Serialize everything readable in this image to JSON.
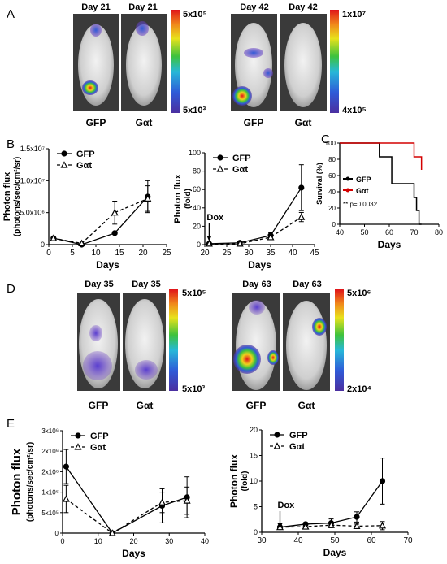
{
  "panels": {
    "A": {
      "letter": "A",
      "image_groups": [
        {
          "day_labels": [
            "Day 21",
            "Day 21"
          ],
          "mouse_labels": [
            "GFP",
            "Gαt"
          ],
          "scale_top": "5x10⁵",
          "scale_bottom": "5x10³"
        },
        {
          "day_labels": [
            "Day 42",
            "Day 42"
          ],
          "mouse_labels": [
            "GFP",
            "Gαt"
          ],
          "scale_top": "1x10⁷",
          "scale_bottom": "4x10⁵"
        }
      ]
    },
    "B": {
      "letter": "B"
    },
    "C": {
      "letter": "C"
    },
    "D": {
      "letter": "D",
      "image_groups": [
        {
          "day_labels": [
            "Day 35",
            "Day 35"
          ],
          "mouse_labels": [
            "GFP",
            "Gαt"
          ],
          "scale_top": "5x10⁵",
          "scale_bottom": "5x10³"
        },
        {
          "day_labels": [
            "Day 63",
            "Day 63"
          ],
          "mouse_labels": [
            "GFP",
            "Gαt"
          ],
          "scale_top": "5x10⁶",
          "scale_bottom": "2x10⁴"
        }
      ]
    },
    "E": {
      "letter": "E"
    }
  },
  "colors": {
    "gfp": "#000000",
    "gat": "#000000",
    "gat_survival": "#d40000",
    "mouse_bg": "#2b2b2b"
  },
  "chart_data": [
    {
      "id": "B1",
      "type": "line",
      "xlabel": "Days",
      "ylabel": "Photon flux",
      "ylabel2": "(photons/sec/cm²/sr)",
      "xlim": [
        0,
        25
      ],
      "xticks": [
        "0",
        "5",
        "10",
        "15",
        "20",
        "25"
      ],
      "ylim": [
        0,
        15000000
      ],
      "yticks": [
        "0",
        "5.0x10⁶",
        "1.0x10⁷",
        "1.5x10⁷"
      ],
      "legend": [
        "GFP",
        "Gαt"
      ],
      "legend_position": "top-left",
      "series": [
        {
          "name": "GFP",
          "x": [
            1,
            7,
            14,
            21
          ],
          "y": [
            1000000,
            0,
            1800000,
            7500000
          ],
          "err": [
            0,
            0,
            0,
            2500000
          ]
        },
        {
          "name": "Gαt",
          "x": [
            1,
            7,
            14,
            21
          ],
          "y": [
            1000000,
            200000,
            5000000,
            7200000
          ],
          "err": [
            0,
            0,
            1800000,
            2000000
          ]
        }
      ]
    },
    {
      "id": "B2",
      "type": "line",
      "xlabel": "Days",
      "ylabel": "Photon flux",
      "ylabel2": "(fold)",
      "xlim": [
        20,
        45
      ],
      "xticks": [
        "20",
        "25",
        "30",
        "35",
        "40",
        "45"
      ],
      "ylim": [
        0,
        100
      ],
      "yticks": [
        "0",
        "20",
        "40",
        "60",
        "80",
        "100"
      ],
      "legend": [
        "GFP",
        "Gαt"
      ],
      "legend_position": "top-left",
      "annotation": "Dox",
      "annotation_x": 21,
      "series": [
        {
          "name": "GFP",
          "x": [
            21,
            28,
            35,
            42
          ],
          "y": [
            1,
            2,
            10,
            62
          ],
          "err": [
            0,
            0,
            3,
            25
          ]
        },
        {
          "name": "Gαt",
          "x": [
            21,
            28,
            35,
            42
          ],
          "y": [
            1,
            1,
            8,
            30
          ],
          "err": [
            0,
            0,
            2,
            5
          ]
        }
      ]
    },
    {
      "id": "C",
      "type": "line",
      "xlabel": "Days",
      "ylabel": "Survival (%)",
      "xlim": [
        40,
        80
      ],
      "xticks": [
        "40",
        "50",
        "60",
        "70",
        "80"
      ],
      "ylim": [
        0,
        100
      ],
      "yticks": [
        "0",
        "20",
        "40",
        "60",
        "80",
        "100"
      ],
      "legend": [
        "GFP",
        "Gαt"
      ],
      "legend_position": "middle-left",
      "annotation": "** p=0.0032",
      "series": [
        {
          "name": "GFP",
          "step": true,
          "x": [
            40,
            53,
            56,
            61,
            68,
            70,
            71,
            72,
            73
          ],
          "y": [
            100,
            100,
            83,
            50,
            50,
            33,
            17,
            0,
            0
          ]
        },
        {
          "name": "Gαt",
          "step": true,
          "x": [
            40,
            67,
            70,
            73
          ],
          "y": [
            100,
            100,
            83,
            67
          ]
        }
      ]
    },
    {
      "id": "E1",
      "type": "line",
      "xlabel": "Days",
      "ylabel": "Photon flux",
      "ylabel2": "(photons/sec/cm²/sr)",
      "xlim": [
        0,
        40
      ],
      "xticks": [
        "0",
        "10",
        "20",
        "30",
        "40"
      ],
      "ylim": [
        0,
        3000000
      ],
      "yticks": [
        "0",
        "5x10⁵",
        "1x10⁶",
        "2x10⁶",
        "2x10⁶",
        "3x10⁶"
      ],
      "legend": [
        "GFP",
        "Gαt"
      ],
      "legend_position": "top-left",
      "series": [
        {
          "name": "GFP",
          "x": [
            1,
            14,
            28,
            35
          ],
          "y": [
            1950000,
            0,
            800000,
            1050000
          ],
          "err": [
            500000,
            0,
            500000,
            600000
          ]
        },
        {
          "name": "Gαt",
          "x": [
            1,
            14,
            28,
            35
          ],
          "y": [
            1000000,
            0,
            900000,
            950000
          ],
          "err": [
            400000,
            0,
            300000,
            400000
          ]
        }
      ]
    },
    {
      "id": "E2",
      "type": "line",
      "xlabel": "Days",
      "ylabel": "Photon flux",
      "ylabel2": "(fold)",
      "xlim": [
        30,
        70
      ],
      "xticks": [
        "30",
        "40",
        "50",
        "60",
        "70"
      ],
      "ylim": [
        0,
        20
      ],
      "yticks": [
        "0",
        "5",
        "10",
        "15",
        "20"
      ],
      "legend": [
        "GFP",
        "Gαt"
      ],
      "legend_position": "top-left",
      "annotation": "Dox",
      "annotation_x": 35,
      "series": [
        {
          "name": "GFP",
          "x": [
            35,
            42,
            49,
            56,
            63
          ],
          "y": [
            1,
            1.6,
            1.8,
            3,
            10
          ],
          "err": [
            0,
            0.3,
            0.8,
            1,
            4.5
          ]
        },
        {
          "name": "Gαt",
          "x": [
            35,
            42,
            49,
            56,
            63
          ],
          "y": [
            1,
            1.1,
            1.4,
            1.2,
            1.3
          ],
          "err": [
            0,
            0.3,
            0.5,
            0.4,
            0.8
          ]
        }
      ]
    }
  ]
}
